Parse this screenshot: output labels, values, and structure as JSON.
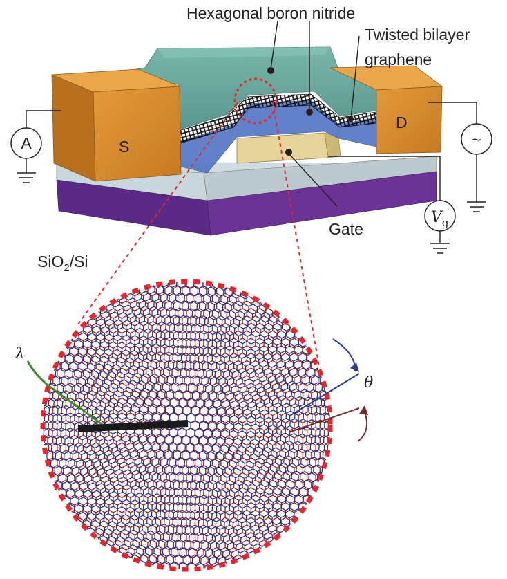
{
  "labels": {
    "hbn": "Hexagonal boron nitride",
    "tbg_line1": "Twisted bilayer",
    "tbg_line2": "graphene",
    "source": "S",
    "drain": "D",
    "gate": "Gate",
    "substrate_main": "SiO",
    "substrate_sub": "2",
    "substrate_rest": "/Si",
    "ammeter": "A",
    "ac_source": "~",
    "vg_main": "V",
    "vg_sub": "g",
    "lambda": "λ",
    "theta": "θ"
  },
  "colors": {
    "contact_gold": "#d98a2c",
    "hbn_teal": "#5f9e93",
    "hbn_blue": "#5577c4",
    "gate_tan": "#e6d49a",
    "oxide": "#c9d6dc",
    "silicon": "#5b2a86",
    "lattice_blue": "#2a2f8f",
    "lattice_red": "#8a2020",
    "zoom_dash": "#e0282e",
    "scale_bar": "#1a1a1a",
    "lambda_line": "#3a8a2a",
    "theta_arrow_blue": "#2a3a9a",
    "theta_arrow_red": "#7a2a2a"
  }
}
